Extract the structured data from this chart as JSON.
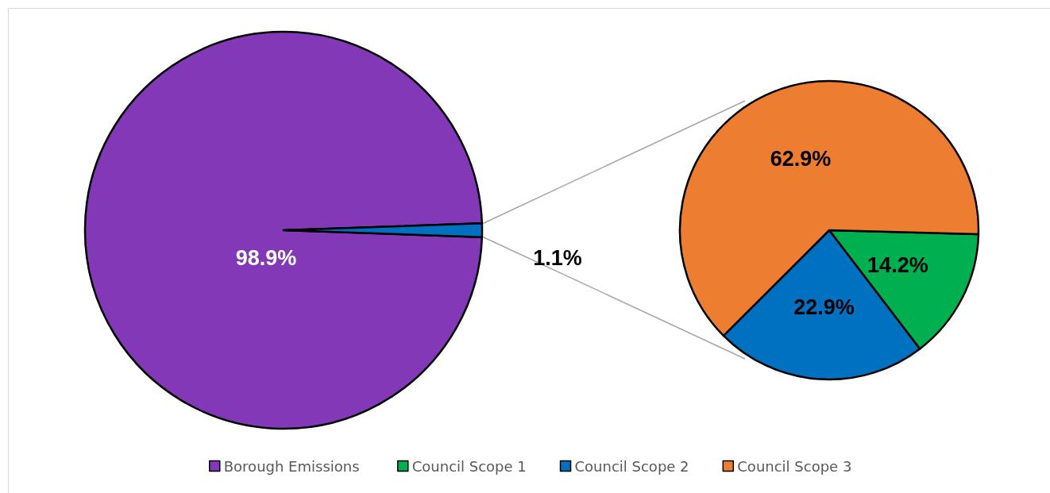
{
  "chart_data": [
    {
      "type": "pie",
      "categories": [
        "Borough Emissions",
        null
      ],
      "values": [
        98.9,
        1.1
      ],
      "colors": [
        "#8338b8",
        "#0070c0"
      ],
      "value_labels": [
        "98.9%",
        "1.1%"
      ],
      "legend": "bottom"
    },
    {
      "type": "pie",
      "categories": [
        "Council Scope 1",
        "Council Scope 2",
        "Council Scope 3"
      ],
      "values": [
        14.2,
        22.9,
        62.9
      ],
      "colors": [
        "#00b050",
        "#0070c0",
        "#ed7d31"
      ],
      "value_labels": [
        "14.2%",
        "22.9%",
        "62.9%"
      ],
      "legend": "bottom"
    }
  ]
}
